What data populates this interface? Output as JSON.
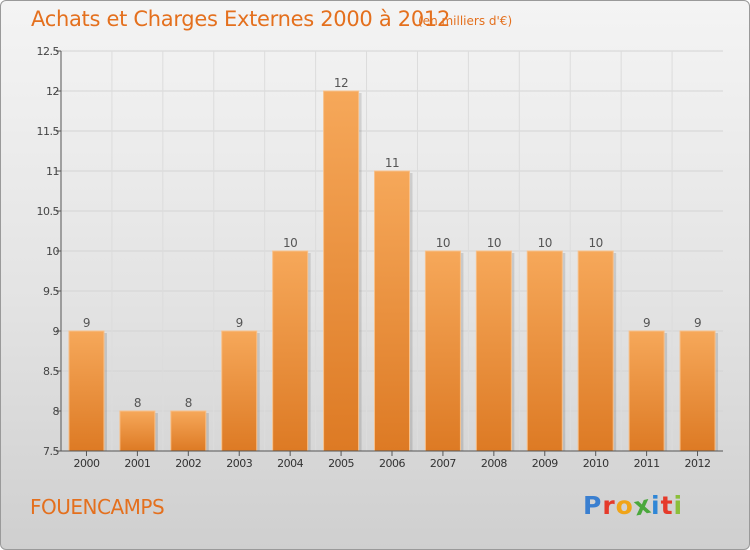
{
  "header": {
    "title": "Achats et Charges Externes 2000 à 2012",
    "subtitle": "(en milliers d'€)"
  },
  "footer": {
    "commune": "FOUENCAMPS",
    "logo_letters": [
      "P",
      "r",
      "o",
      "x",
      "i",
      "t",
      "i"
    ]
  },
  "colors": {
    "title": "#e4701e",
    "bar_top": "#f6a85a",
    "bar_bottom": "#dd7a24",
    "logo": [
      "#3a7fd0",
      "#e53a2a",
      "#f0a418",
      "#4aa83c",
      "#2f86d6",
      "#e53a2a",
      "#8bbf3a"
    ]
  },
  "chart_data": {
    "type": "bar",
    "categories": [
      "2000",
      "2001",
      "2002",
      "2003",
      "2004",
      "2005",
      "2006",
      "2007",
      "2008",
      "2009",
      "2010",
      "2011",
      "2012"
    ],
    "values": [
      9,
      8,
      8,
      9,
      10,
      12,
      11,
      10,
      10,
      10,
      10,
      9,
      9
    ],
    "data_labels": [
      "9",
      "8",
      "8",
      "9",
      "10",
      "12",
      "11",
      "10",
      "10",
      "10",
      "10",
      "9",
      "9"
    ],
    "yticks": [
      "7.5",
      "8",
      "8.5",
      "9",
      "9.5",
      "10",
      "10.5",
      "11",
      "11.5",
      "12",
      "12.5"
    ],
    "ylim": [
      7.5,
      12.5
    ],
    "grid": true,
    "legend": "none"
  }
}
